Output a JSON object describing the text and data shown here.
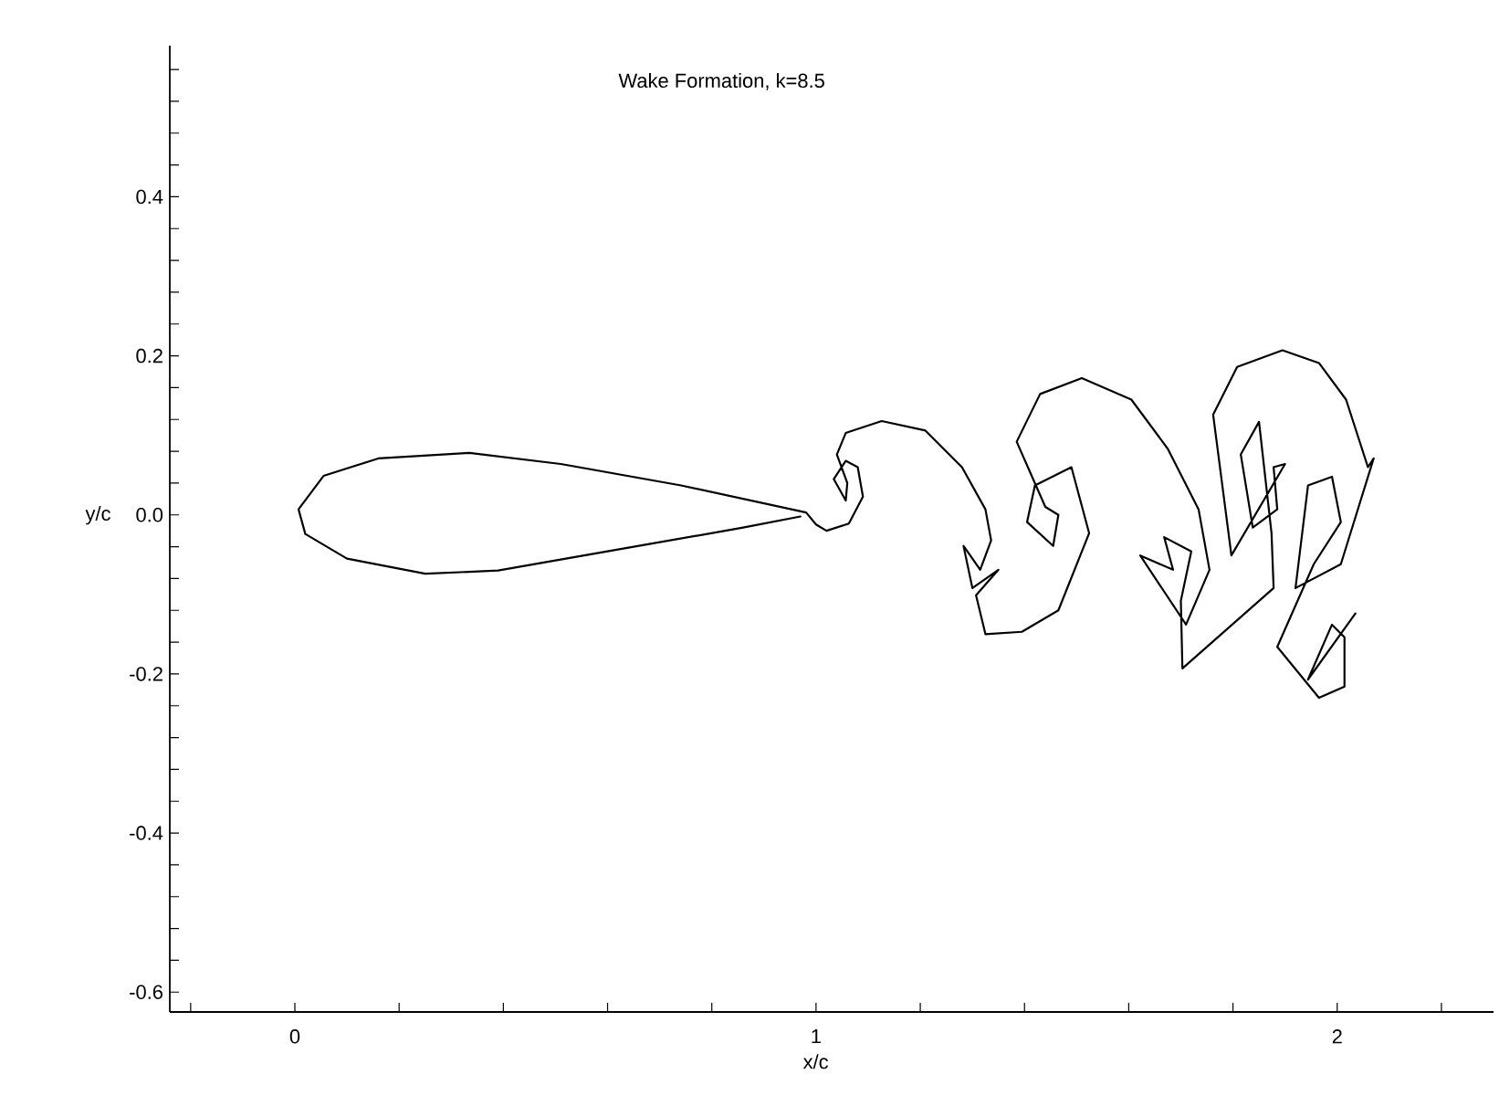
{
  "chart_data": {
    "type": "line",
    "title": "Wake Formation, k=8.5",
    "xlabel": "x/c",
    "ylabel": "y/c",
    "xlim": [
      -0.24,
      2.3
    ],
    "ylim": [
      -0.625,
      0.59
    ],
    "xticks": [
      {
        "value": -0.2,
        "label": null
      },
      0,
      {
        "value": 0.2,
        "label": null
      },
      {
        "value": 0.4,
        "label": null
      },
      {
        "value": 0.6,
        "label": null
      },
      {
        "value": 0.8,
        "label": null
      },
      1,
      {
        "value": 1.2,
        "label": null
      },
      {
        "value": 1.4,
        "label": null
      },
      {
        "value": 1.6,
        "label": null
      },
      {
        "value": 1.8,
        "label": null
      },
      2,
      {
        "value": 2.2,
        "label": null
      }
    ],
    "yticks": [
      {
        "value": -0.6,
        "label": "-0.6"
      },
      {
        "value": -0.56,
        "label": null
      },
      {
        "value": -0.52,
        "label": null
      },
      {
        "value": -0.48,
        "label": null
      },
      {
        "value": -0.44,
        "label": null
      },
      {
        "value": -0.4,
        "label": "-0.4"
      },
      {
        "value": -0.36,
        "label": null
      },
      {
        "value": -0.32,
        "label": null
      },
      {
        "value": -0.28,
        "label": null
      },
      {
        "value": -0.24,
        "label": null
      },
      {
        "value": -0.2,
        "label": "-0.2"
      },
      {
        "value": -0.16,
        "label": null
      },
      {
        "value": -0.12,
        "label": null
      },
      {
        "value": -0.08,
        "label": null
      },
      {
        "value": -0.04,
        "label": null
      },
      {
        "value": 0,
        "label": "0.0"
      },
      {
        "value": 0.04,
        "label": null
      },
      {
        "value": 0.08,
        "label": null
      },
      {
        "value": 0.12,
        "label": null
      },
      {
        "value": 0.16,
        "label": null
      },
      {
        "value": 0.2,
        "label": "0.2"
      },
      {
        "value": 0.24,
        "label": null
      },
      {
        "value": 0.28,
        "label": null
      },
      {
        "value": 0.32,
        "label": null
      },
      {
        "value": 0.36,
        "label": null
      },
      {
        "value": 0.4,
        "label": "0.4"
      },
      {
        "value": 0.44,
        "label": null
      },
      {
        "value": 0.48,
        "label": null
      },
      {
        "value": 0.52,
        "label": null
      },
      {
        "value": 0.56,
        "label": null
      }
    ],
    "marker": "none",
    "line_style": "solid",
    "series": [
      {
        "color": "#000000",
        "x": [
          0.97,
          0.86,
          0.625,
          0.39,
          0.25,
          0.1,
          0.02,
          0.007,
          0.055,
          0.16,
          0.335,
          0.51,
          0.741,
          0.981,
          1.0,
          1.02,
          1.063,
          1.09,
          1.08,
          1.057,
          1.034,
          1.057,
          1.06,
          1.04,
          1.057,
          1.126,
          1.21,
          1.28,
          1.325,
          1.336,
          1.315,
          1.283,
          1.3,
          1.35,
          1.307,
          1.325,
          1.395,
          1.465,
          1.524,
          1.49,
          1.42,
          1.405,
          1.455,
          1.465,
          1.44,
          1.385,
          1.43,
          1.51,
          1.605,
          1.675,
          1.734,
          1.755,
          1.71,
          1.622,
          1.685,
          1.668,
          1.72,
          1.7,
          1.703,
          1.878,
          1.874,
          1.85,
          1.815,
          1.838,
          1.885,
          1.878,
          1.9,
          1.797,
          1.762,
          1.808,
          1.895,
          1.965,
          2.017,
          2.059,
          2.07,
          2.007,
          1.92,
          1.944,
          1.99,
          2.007,
          1.955,
          1.885,
          1.965,
          2.014,
          2.014,
          1.99,
          1.944,
          2.035
        ],
        "values": [
          -0.002,
          -0.016,
          -0.043,
          -0.07,
          -0.074,
          -0.055,
          -0.024,
          0.007,
          0.049,
          0.071,
          0.078,
          0.064,
          0.037,
          0.003,
          -0.012,
          -0.02,
          -0.011,
          0.023,
          0.06,
          0.068,
          0.045,
          0.018,
          0.04,
          0.076,
          0.103,
          0.118,
          0.106,
          0.06,
          0.007,
          -0.032,
          -0.069,
          -0.039,
          -0.092,
          -0.069,
          -0.101,
          -0.15,
          -0.147,
          -0.12,
          -0.023,
          0.06,
          0.037,
          -0.009,
          -0.039,
          0.0,
          0.01,
          0.092,
          0.152,
          0.172,
          0.145,
          0.083,
          0.007,
          -0.069,
          -0.138,
          -0.051,
          -0.069,
          -0.028,
          -0.046,
          -0.108,
          -0.193,
          -0.092,
          -0.023,
          0.117,
          0.076,
          -0.016,
          0.007,
          0.06,
          0.064,
          -0.051,
          0.126,
          0.186,
          0.207,
          0.191,
          0.145,
          0.06,
          0.071,
          -0.062,
          -0.092,
          0.037,
          0.048,
          -0.009,
          -0.062,
          -0.166,
          -0.23,
          -0.216,
          -0.154,
          -0.138,
          -0.207,
          -0.124
        ]
      }
    ]
  }
}
